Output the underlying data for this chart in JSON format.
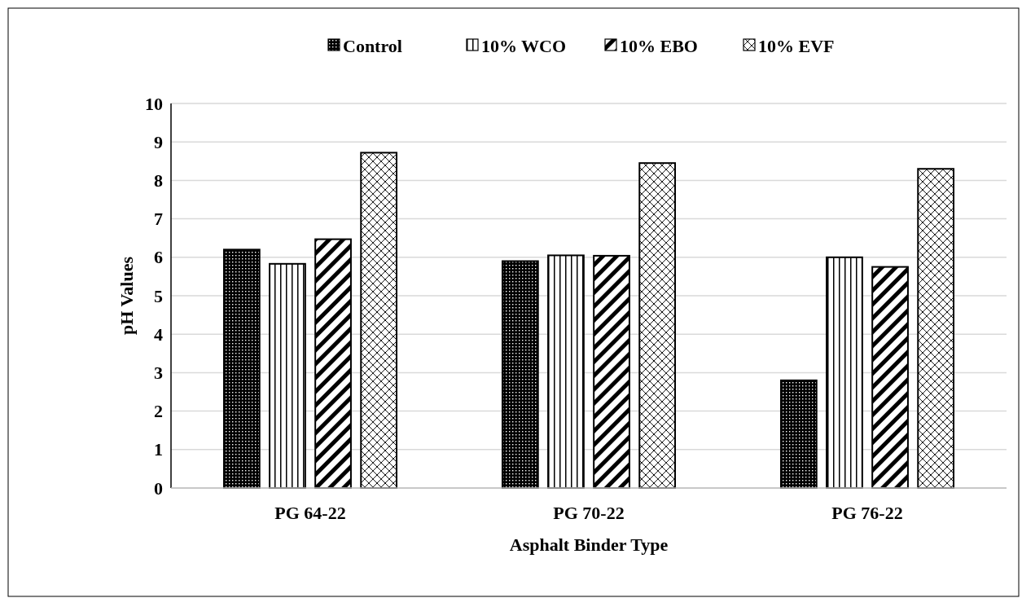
{
  "chart_data": {
    "type": "bar",
    "xlabel": "Asphalt Binder Type",
    "ylabel": "pH Values",
    "categories": [
      "PG 64-22",
      "PG 70-22",
      "PG 76-22"
    ],
    "series": [
      {
        "name": "Control",
        "color": "#000000",
        "values": [
          6.2,
          5.9,
          2.8
        ]
      },
      {
        "name": "10% WCO",
        "color": "#000000",
        "values": [
          5.83,
          6.05,
          6.0
        ]
      },
      {
        "name": "10% EBO",
        "color": "#000000",
        "values": [
          6.47,
          6.04,
          5.75
        ]
      },
      {
        "name": "10% EVF",
        "color": "#000000",
        "values": [
          8.72,
          8.45,
          8.3
        ]
      }
    ],
    "ylim": [
      0,
      10
    ],
    "yticks": [
      0,
      1,
      2,
      3,
      4,
      5,
      6,
      7,
      8,
      9,
      10
    ],
    "grid": "y",
    "legend": "top"
  }
}
